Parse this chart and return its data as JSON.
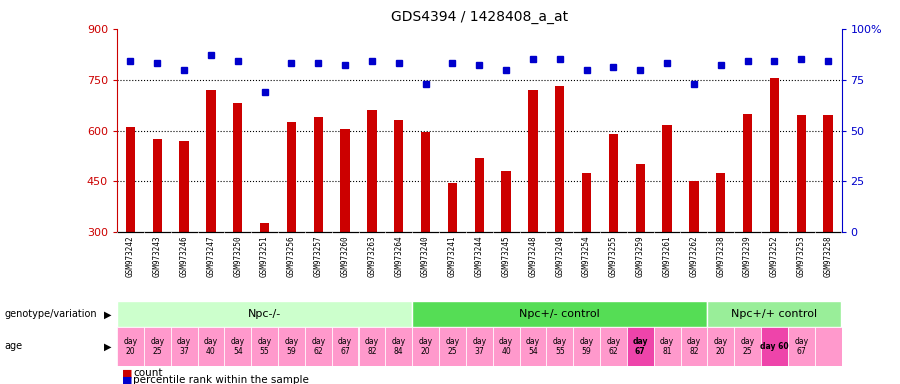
{
  "title": "GDS4394 / 1428408_a_at",
  "samples": [
    "GSM973242",
    "GSM973243",
    "GSM973246",
    "GSM973247",
    "GSM973250",
    "GSM973251",
    "GSM973256",
    "GSM973257",
    "GSM973260",
    "GSM973263",
    "GSM973264",
    "GSM973240",
    "GSM973241",
    "GSM973244",
    "GSM973245",
    "GSM973248",
    "GSM973249",
    "GSM973254",
    "GSM973255",
    "GSM973259",
    "GSM973261",
    "GSM973262",
    "GSM973238",
    "GSM973239",
    "GSM973252",
    "GSM973253",
    "GSM973258"
  ],
  "counts": [
    610,
    575,
    570,
    720,
    680,
    328,
    625,
    640,
    605,
    660,
    630,
    595,
    445,
    520,
    480,
    720,
    730,
    475,
    590,
    500,
    615,
    450,
    475,
    650,
    755,
    645,
    645
  ],
  "percentile_ranks": [
    84,
    83,
    80,
    87,
    84,
    69,
    83,
    83,
    82,
    84,
    83,
    73,
    83,
    82,
    80,
    85,
    85,
    80,
    81,
    80,
    83,
    73,
    82,
    84,
    84,
    85,
    84
  ],
  "ylim_left": [
    300,
    900
  ],
  "yticks_left": [
    300,
    450,
    600,
    750,
    900
  ],
  "yticks_right": [
    0,
    25,
    50,
    75,
    100
  ],
  "groups": [
    {
      "label": "Npc-/-",
      "start": 0,
      "end": 11
    },
    {
      "label": "Npc+/- control",
      "start": 11,
      "end": 22
    },
    {
      "label": "Npc+/+ control",
      "start": 22,
      "end": 27
    }
  ],
  "group_colors": [
    "#ccffcc",
    "#66dd66",
    "#99ee99"
  ],
  "age_labels": [
    "day\n20",
    "day\n25",
    "day\n37",
    "day\n40",
    "day\n54",
    "day\n55",
    "day\n59",
    "day\n62",
    "day\n67",
    "day\n82",
    "day\n84",
    "day\n20",
    "day\n25",
    "day\n37",
    "day\n40",
    "day\n54",
    "day\n55",
    "day\n59",
    "day\n62",
    "day\n67",
    "day\n81",
    "day\n82",
    "day\n20",
    "day\n25",
    "day 60",
    "day\n67",
    ""
  ],
  "age_highlight_indices": [
    19,
    24
  ],
  "age_color_normal": "#ff99cc",
  "age_color_highlight": "#ee44aa",
  "bar_color": "#cc0000",
  "dot_color": "#0000cc",
  "label_bg_color": "#c8c8c8",
  "genotype_label_color": "#ccffcc",
  "genotype_mid_color": "#55cc55",
  "genotype_right_color": "#88dd88"
}
